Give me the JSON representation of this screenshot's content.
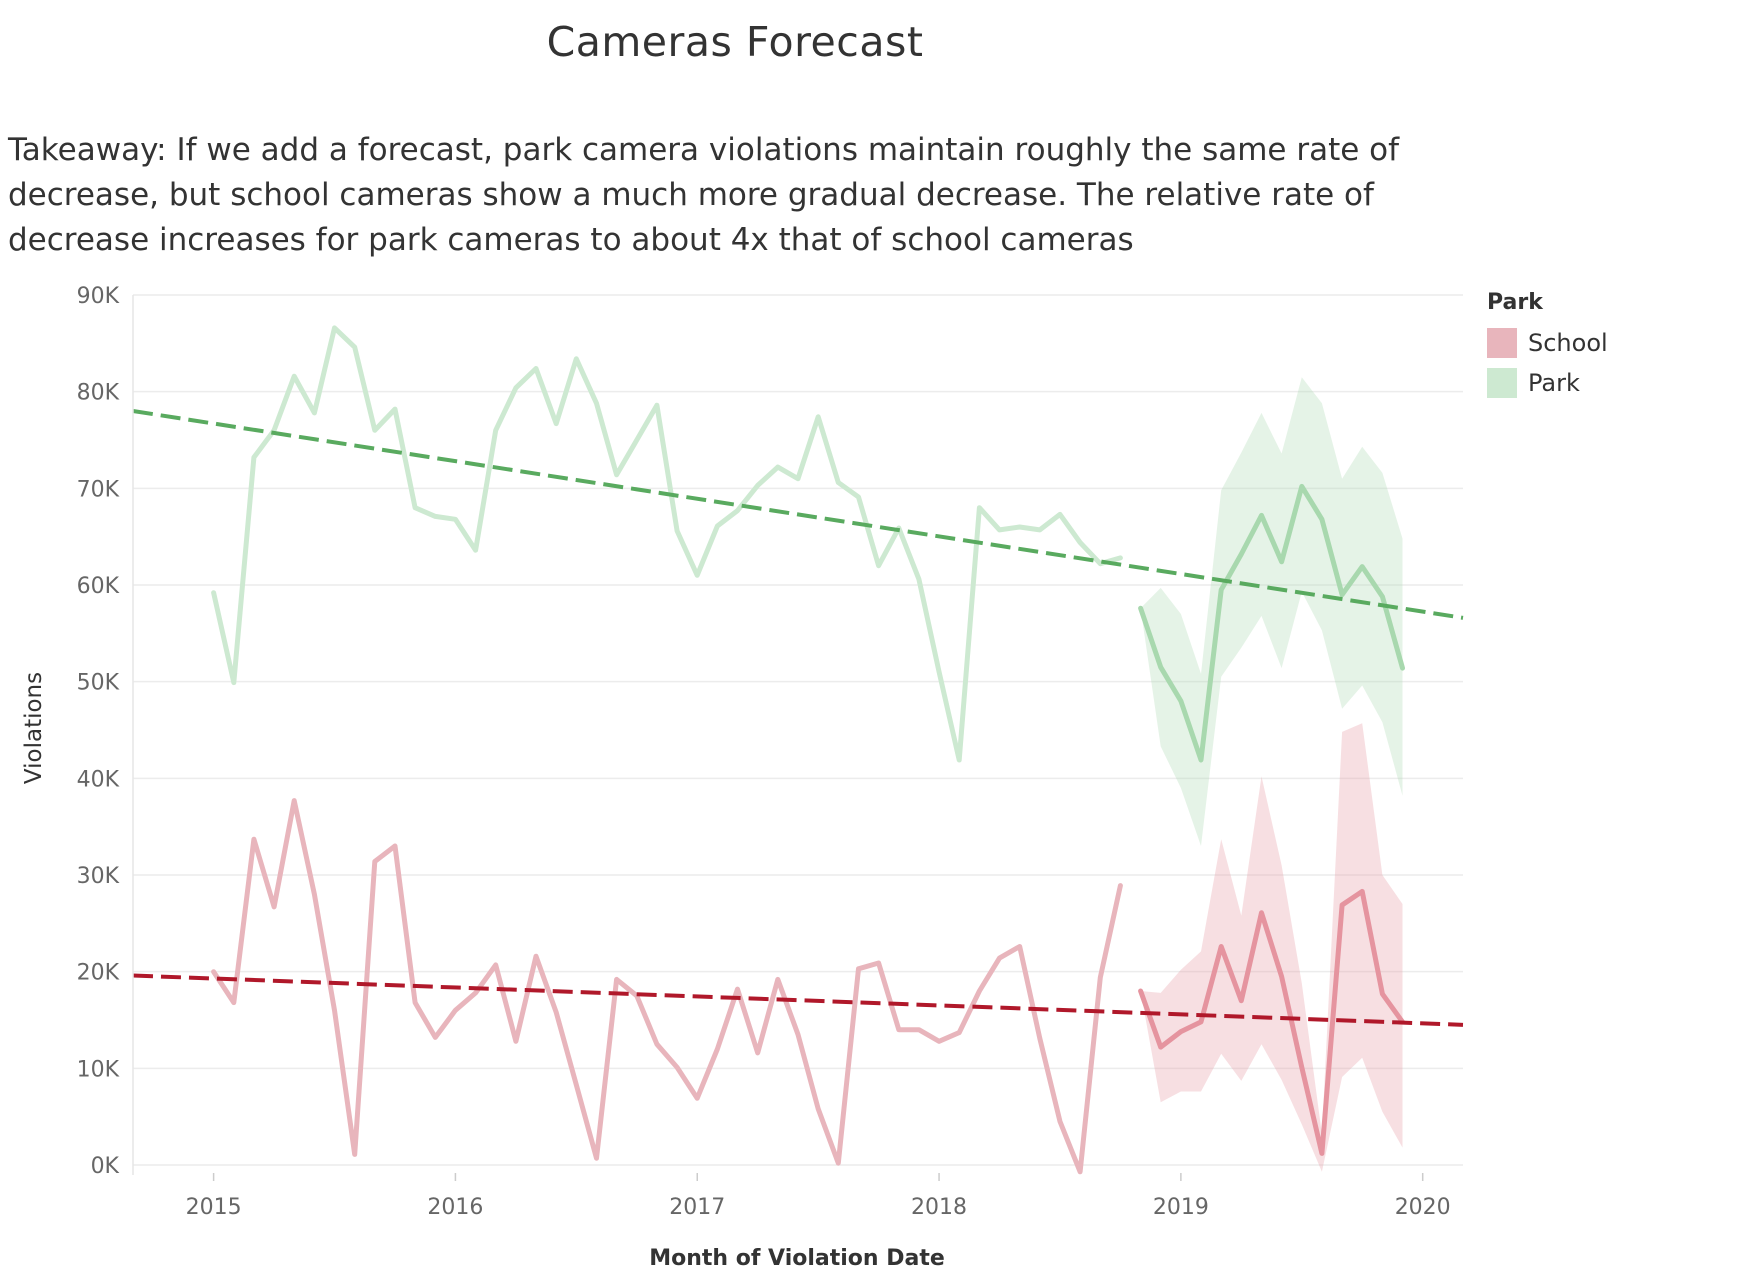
{
  "header": {
    "title": "Cameras Forecast",
    "takeaway": "Takeaway: If we add a forecast, park camera violations maintain roughly the same rate of decrease, but school cameras show a much more gradual decrease. The relative rate of decrease increases for park cameras to about 4x that of school cameras"
  },
  "legend": {
    "title": "Park",
    "items": [
      {
        "label": "School",
        "color": "#e8b5bc"
      },
      {
        "label": "Park",
        "color": "#cde9d1"
      }
    ]
  },
  "chart_data": {
    "type": "line",
    "xlabel": "Month of Violation Date",
    "ylabel": "Violations",
    "x_ticks": [
      "2015",
      "2016",
      "2017",
      "2018",
      "2019",
      "2020"
    ],
    "y_ticks": [
      "0K",
      "10K",
      "20K",
      "30K",
      "40K",
      "50K",
      "60K",
      "70K",
      "80K",
      "90K"
    ],
    "xlim": [
      "2014-09",
      "2020-03"
    ],
    "ylim": [
      0,
      90000
    ],
    "grid": true,
    "legend_position": "right",
    "series": [
      {
        "name": "Park",
        "color": "#cde9d1",
        "forecast_color": "#a8d8ae",
        "start": "2015-01",
        "actual": [
          59200,
          49900,
          73200,
          76000,
          81600,
          77800,
          86600,
          84600,
          76000,
          78200,
          68000,
          67100,
          66800,
          63600,
          76000,
          80400,
          82400,
          76700,
          83400,
          78800,
          71400,
          75000,
          78600,
          65600,
          61000,
          66100,
          67700,
          70300,
          72200,
          71000,
          77400,
          70600,
          69100,
          62000,
          65900,
          60600,
          51000,
          41900,
          68000,
          65700,
          66000,
          65700,
          67300,
          64400,
          62200,
          62800
        ],
        "forecast_start": "2018-11",
        "forecast": [
          57600,
          51500,
          48000,
          41900,
          59500,
          63200,
          67200,
          62400,
          70200,
          66800,
          59000,
          61900,
          58800,
          51400
        ],
        "band_upper": [
          57600,
          59700,
          57000,
          50800,
          69800,
          73700,
          77800,
          73600,
          81500,
          78800,
          71000,
          74300,
          71600,
          64800
        ],
        "band_lower": [
          57600,
          43300,
          39000,
          33000,
          50500,
          53500,
          56800,
          51400,
          59300,
          55300,
          47200,
          49600,
          45800,
          38200
        ],
        "trend": [
          78000,
          56600
        ]
      },
      {
        "name": "School",
        "color": "#e8b5bc",
        "forecast_color": "#e5949f",
        "start": "2015-01",
        "actual": [
          20000,
          16800,
          33700,
          26700,
          37700,
          28000,
          16000,
          1100,
          31400,
          33000,
          16800,
          13200,
          16000,
          17800,
          20700,
          12800,
          21600,
          15800,
          8300,
          700,
          19200,
          17500,
          12500,
          10100,
          6900,
          12000,
          18200,
          11600,
          19200,
          13500,
          5800,
          200,
          20300,
          20900,
          14000,
          14000,
          12800,
          13700,
          18000,
          21400,
          22600,
          13100,
          4500,
          -700,
          19400,
          28900
        ],
        "forecast_start": "2018-11",
        "forecast": [
          18000,
          12200,
          13800,
          14800,
          22600,
          17000,
          26100,
          19500,
          10100,
          1200,
          26900,
          28300,
          17700,
          14800
        ],
        "band_upper": [
          18000,
          17800,
          20200,
          22100,
          33700,
          25800,
          40200,
          31000,
          18800,
          3200,
          44800,
          45700,
          30000,
          27000
        ],
        "band_lower": [
          18000,
          6500,
          7600,
          7600,
          11500,
          8700,
          12500,
          8800,
          4200,
          -700,
          9100,
          11100,
          5500,
          1800
        ],
        "trend": [
          19600,
          14500
        ]
      }
    ]
  }
}
